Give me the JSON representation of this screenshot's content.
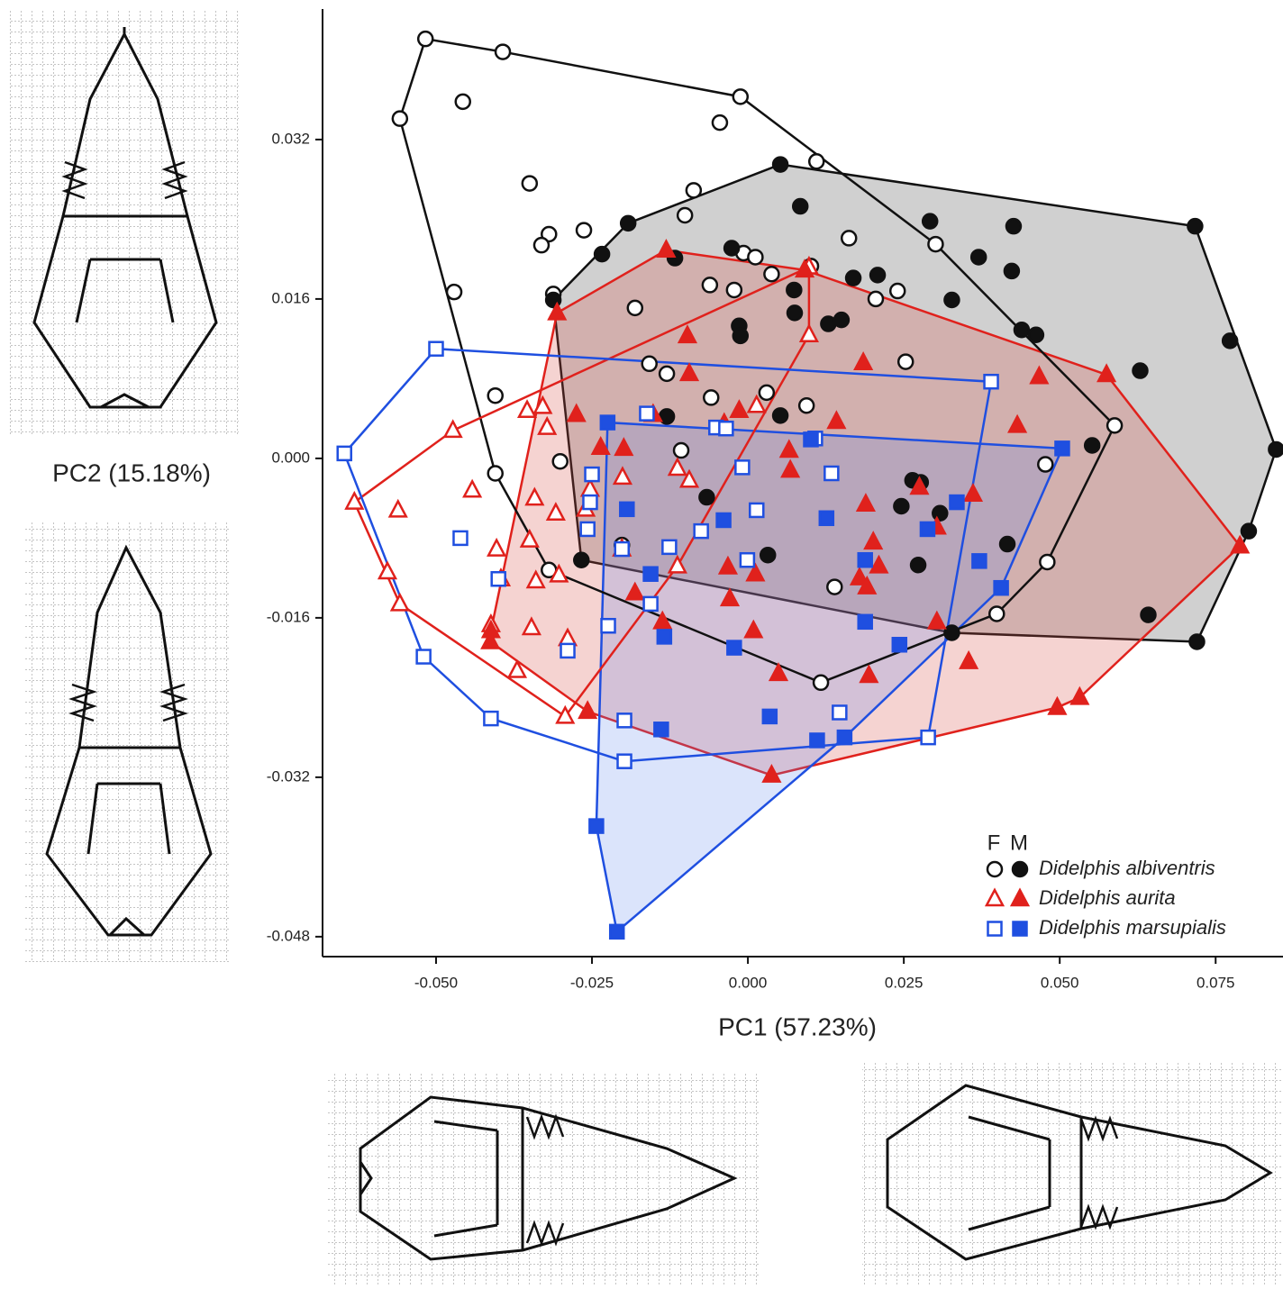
{
  "chart_data": {
    "type": "scatter",
    "x_label": "PC1 (57.23%)",
    "y_label": "PC2 (15.18%)",
    "xlim": [
      -0.0682,
      0.0858
    ],
    "ylim": [
      -0.05,
      0.0451
    ],
    "xticks": [
      {
        "value": -0.05,
        "label": "-0.050"
      },
      -0.025,
      {
        "value": 0,
        "label": "0.000"
      },
      0.025,
      {
        "value": 0.05,
        "label": "0.050"
      },
      0.075
    ],
    "yticks": [
      0.032,
      0.016,
      {
        "value": 0,
        "label": "0.000"
      },
      -0.016,
      -0.032,
      -0.048
    ],
    "sex_labels": [
      "F",
      "M"
    ],
    "series": [
      {
        "name": "Didelphis albiventris",
        "color": "#111111",
        "marker": "circle",
        "hull_fill": "rgba(120,120,120,0.35)",
        "female": {
          "x": [
            -0.0517,
            -0.0393,
            -0.0012,
            -0.0558,
            -0.0457,
            -0.0045,
            0.011,
            -0.035,
            -0.0087,
            -0.0101,
            -0.0263,
            -0.0319,
            -0.0331,
            0.0162,
            0.0301,
            -0.0007,
            0.0012,
            0.0038,
            0.0101,
            -0.0061,
            -0.0022,
            0.0205,
            0.024,
            -0.0471,
            -0.0312,
            -0.0181,
            -0.0158,
            -0.013,
            0.0253,
            -0.0405,
            -0.0059,
            0.003,
            0.0094,
            0.0588,
            -0.0107,
            -0.0301,
            -0.0405,
            0.0477,
            -0.0202,
            -0.0319,
            0.048,
            0.0399,
            0.0139,
            0.0117
          ],
          "y": [
            0.0421,
            0.0408,
            0.0363,
            0.0341,
            0.0358,
            0.0337,
            0.0298,
            0.0276,
            0.0269,
            0.0244,
            0.0229,
            0.0225,
            0.0214,
            0.0221,
            0.0215,
            0.0206,
            0.0202,
            0.0185,
            0.0193,
            0.0174,
            0.0169,
            0.016,
            0.0168,
            0.0167,
            0.0165,
            0.0151,
            0.0095,
            0.0085,
            0.0097,
            0.0063,
            0.0061,
            0.0066,
            0.0053,
            0.0033,
            0.0008,
            -0.0003,
            -0.0015,
            -0.0006,
            -0.0087,
            -0.0112,
            -0.0104,
            -0.0156,
            -0.0129,
            -0.0225
          ]
        },
        "male": {
          "x": [
            0.0052,
            -0.0192,
            0.0084,
            0.0292,
            0.0426,
            0.0717,
            0.037,
            0.0423,
            -0.0026,
            -0.0117,
            0.0169,
            0.0208,
            0.0074,
            0.0327,
            0.0075,
            0.0129,
            0.015,
            -0.0014,
            -0.0012,
            0.0439,
            0.0462,
            0.0773,
            0.0629,
            -0.013,
            0.0052,
            0.0847,
            0.0552,
            -0.0066,
            0.0264,
            0.0277,
            0.0246,
            0.0308,
            0.0803,
            0.0416,
            0.0032,
            0.0273,
            -0.0267,
            0.0642,
            0.072,
            -0.0312,
            -0.0234,
            0.0327
          ],
          "y": [
            0.0295,
            0.0236,
            0.0253,
            0.0238,
            0.0233,
            0.0233,
            0.0202,
            0.0188,
            0.0211,
            0.0201,
            0.0181,
            0.0184,
            0.0169,
            0.0159,
            0.0146,
            0.0135,
            0.0139,
            0.0133,
            0.0123,
            0.0129,
            0.0124,
            0.0118,
            0.0088,
            0.0042,
            0.0043,
            0.0009,
            0.0013,
            -0.0039,
            -0.0022,
            -0.0024,
            -0.0048,
            -0.0055,
            -0.0073,
            -0.0086,
            -0.0097,
            -0.0107,
            -0.0102,
            -0.0157,
            -0.0184,
            0.0159,
            0.0205,
            -0.0175
          ]
        }
      },
      {
        "name": "Didelphis aurita",
        "color": "#e0211c",
        "marker": "triangle",
        "hull_fill": "rgba(215,80,70,0.25)",
        "female": {
          "x": [
            0.0098,
            0.0098,
            -0.0473,
            -0.0354,
            -0.0329,
            -0.0322,
            -0.0631,
            -0.0561,
            -0.0442,
            -0.0342,
            -0.0308,
            -0.035,
            -0.0403,
            -0.0396,
            -0.034,
            -0.0303,
            -0.026,
            -0.0253,
            -0.0201,
            -0.0202,
            -0.0113,
            -0.0094,
            -0.0113,
            -0.0578,
            -0.0558,
            -0.0412,
            -0.0347,
            -0.0289,
            -0.037,
            -0.0293,
            0.0014
          ],
          "y": [
            0.0192,
            0.0124,
            0.0028,
            0.0048,
            0.0052,
            0.0031,
            -0.0044,
            -0.0052,
            -0.0032,
            -0.004,
            -0.0055,
            -0.0082,
            -0.0091,
            -0.0121,
            -0.0123,
            -0.0117,
            -0.0051,
            -0.0031,
            -0.0019,
            -0.0091,
            -0.001,
            -0.0022,
            -0.0108,
            -0.0114,
            -0.0146,
            -0.0167,
            -0.017,
            -0.0181,
            -0.0213,
            -0.0259,
            0.0053
          ]
        },
        "male": {
          "x": [
            -0.0131,
            0.0091,
            -0.0306,
            -0.0097,
            -0.0094,
            0.0185,
            0.0467,
            0.0575,
            0.0432,
            -0.0275,
            -0.0236,
            -0.0199,
            -0.0152,
            -0.0014,
            -0.0038,
            0.0142,
            0.0066,
            0.0068,
            0.0275,
            0.0361,
            0.0189,
            0.0201,
            0.021,
            0.0179,
            0.0191,
            0.0303,
            -0.0032,
            -0.0029,
            0.0012,
            -0.0181,
            -0.0137,
            0.0009,
            0.0049,
            0.0194,
            0.0354,
            0.0303,
            0.0496,
            0.0532,
            0.0789,
            0.0038,
            -0.0257,
            -0.0412,
            -0.0413
          ],
          "y": [
            0.0209,
            0.0189,
            0.0146,
            0.0123,
            0.0085,
            0.0096,
            0.0082,
            0.0084,
            0.0033,
            0.0044,
            0.0011,
            0.001,
            0.0044,
            0.0048,
            0.0035,
            0.0037,
            0.0008,
            -0.0012,
            -0.0029,
            -0.0036,
            -0.0046,
            -0.0084,
            -0.0108,
            -0.012,
            -0.0129,
            -0.0069,
            -0.0109,
            -0.0141,
            -0.0116,
            -0.0135,
            -0.0164,
            -0.0173,
            -0.0216,
            -0.0218,
            -0.0204,
            -0.0164,
            -0.025,
            -0.024,
            -0.0088,
            -0.0318,
            -0.0254,
            -0.0173,
            -0.0184
          ]
        }
      },
      {
        "name": "Didelphis marsupialis",
        "color": "#1f4fe0",
        "marker": "square",
        "hull_fill": "rgba(90,130,235,0.22)",
        "female": {
          "x": [
            -0.05,
            -0.0647,
            0.039,
            -0.0162,
            -0.0051,
            -0.0035,
            -0.025,
            -0.0253,
            -0.0257,
            -0.0009,
            0.0134,
            0.0014,
            -0.0075,
            -0.0126,
            -0.0202,
            -0.0461,
            -0.04,
            -0.0156,
            -0.0224,
            -0.0001,
            -0.0289,
            -0.052,
            -0.0412,
            -0.0198,
            -0.0198,
            0.0147,
            0.0289,
            0.0108
          ],
          "y": [
            0.011,
            0.0005,
            0.0077,
            0.0045,
            0.0031,
            0.003,
            -0.0016,
            -0.0044,
            -0.0071,
            -0.0009,
            -0.0015,
            -0.0052,
            -0.0073,
            -0.0089,
            -0.0091,
            -0.008,
            -0.0121,
            -0.0146,
            -0.0168,
            -0.0102,
            -0.0193,
            -0.0199,
            -0.0261,
            -0.0304,
            -0.0263,
            -0.0255,
            -0.028,
            0.002
          ]
        },
        "male": {
          "x": [
            -0.0225,
            0.0504,
            0.0101,
            -0.0194,
            -0.0156,
            -0.0039,
            0.0126,
            0.0288,
            0.0335,
            0.0371,
            0.0406,
            0.0188,
            0.0188,
            0.0243,
            -0.0022,
            -0.0134,
            -0.0139,
            0.0035,
            0.0111,
            0.0155,
            -0.0243,
            -0.021
          ],
          "y": [
            0.0036,
            0.001,
            0.0019,
            -0.0051,
            -0.0116,
            -0.0062,
            -0.006,
            -0.0071,
            -0.0044,
            -0.0103,
            -0.013,
            -0.0102,
            -0.0164,
            -0.0187,
            -0.019,
            -0.0179,
            -0.0272,
            -0.0259,
            -0.0283,
            -0.028,
            -0.0369,
            -0.0475
          ]
        }
      }
    ]
  }
}
